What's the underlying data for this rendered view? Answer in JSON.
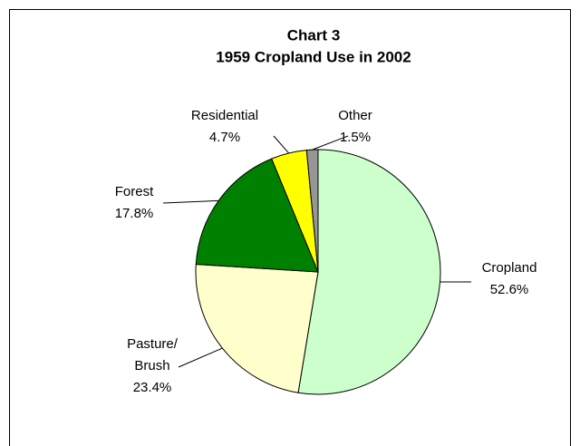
{
  "chart_data": {
    "type": "pie",
    "title": "Chart 3",
    "subtitle": "1959 Cropland Use in 2002",
    "categories": [
      "Cropland",
      "Pasture/ Brush",
      "Forest",
      "Residential",
      "Other"
    ],
    "values": [
      52.6,
      23.4,
      17.8,
      4.7,
      1.5
    ],
    "value_labels": [
      "52.6%",
      "23.4%",
      "17.8%",
      "4.7%",
      "1.5%"
    ],
    "colors": [
      "#ccffcc",
      "#ffffcc",
      "#008000",
      "#ffff00",
      "#969696"
    ]
  }
}
